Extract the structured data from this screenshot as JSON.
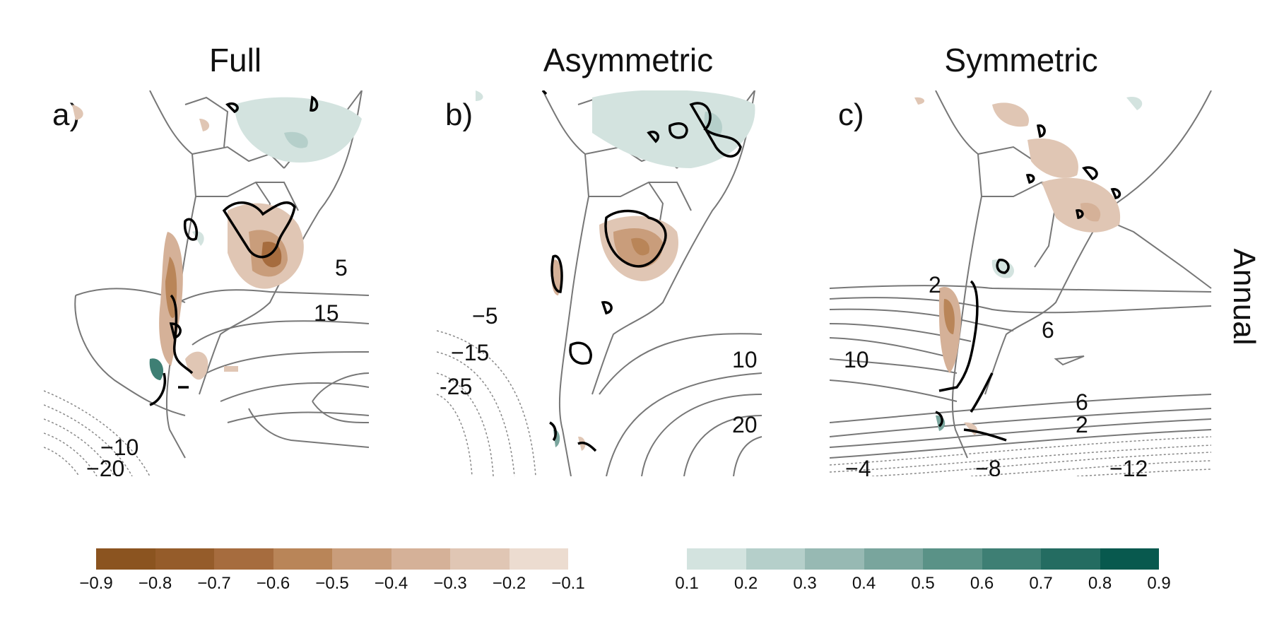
{
  "panels": [
    {
      "letter": "a)",
      "title": "Full",
      "contour_labels": [
        "5",
        "15",
        "−10",
        "−20"
      ]
    },
    {
      "letter": "b)",
      "title": "Asymmetric",
      "contour_labels": [
        "−5",
        "−15",
        "-25",
        "10",
        "20"
      ]
    },
    {
      "letter": "c)",
      "title": "Symmetric",
      "contour_labels": [
        "2",
        "6",
        "10",
        "6",
        "2",
        "−4",
        "−8",
        "−12"
      ]
    }
  ],
  "row_label": "Annual",
  "colorbar_negative": {
    "ticks": [
      "−0.9",
      "−0.8",
      "−0.7",
      "−0.6",
      "−0.5",
      "−0.4",
      "−0.3",
      "−0.2",
      "−0.1"
    ],
    "colors": [
      "#8b5420",
      "#955c2a",
      "#a66c3e",
      "#b98558",
      "#c99d7b",
      "#d5b198",
      "#e0c6b4",
      "#ecdcd0"
    ]
  },
  "colorbar_positive": {
    "ticks": [
      "0.1",
      "0.2",
      "0.3",
      "0.4",
      "0.5",
      "0.6",
      "0.7",
      "0.8",
      "0.9"
    ],
    "colors": [
      "#d3e3df",
      "#b5cfca",
      "#97b9b3",
      "#79a59d",
      "#5a9287",
      "#3e7f74",
      "#246c61",
      "#08594e"
    ]
  }
}
